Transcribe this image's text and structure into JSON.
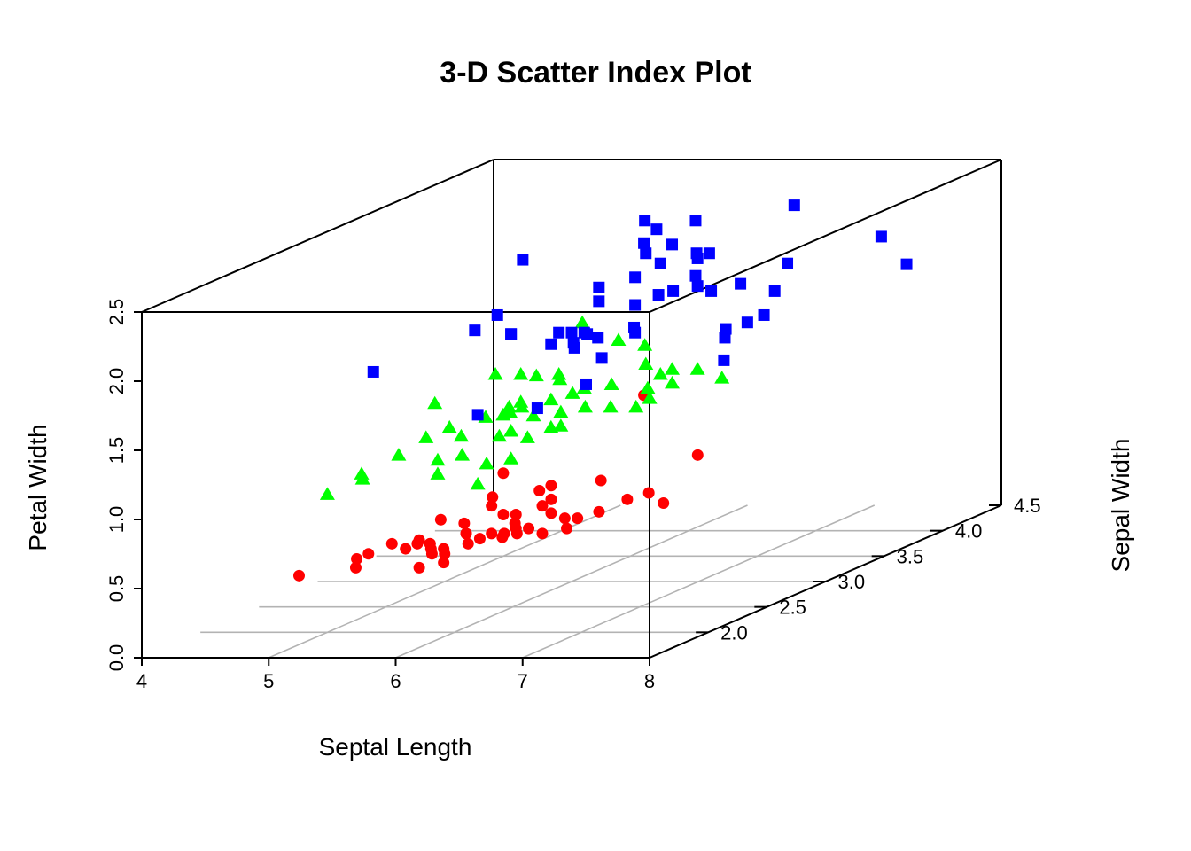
{
  "chart_data": {
    "type": "scatter",
    "projection": "3d",
    "title": "3-D Scatter Index Plot",
    "xlabel": "Septal Length",
    "ylabel": "Sepal Width",
    "zlabel": "Petal Width",
    "xlim": [
      4,
      8
    ],
    "ylim": [
      1.5,
      4.5
    ],
    "zlim": [
      0,
      2.5
    ],
    "x_ticks": [
      "4",
      "5",
      "6",
      "7",
      "8"
    ],
    "y_ticks": [
      "2.0",
      "2.5",
      "3.0",
      "3.5",
      "4.0",
      "4.5"
    ],
    "z_ticks": [
      "0.0",
      "0.5",
      "1.0",
      "1.5",
      "2.0",
      "2.5"
    ],
    "grid": true,
    "legend": "none",
    "series": [
      {
        "marker": "circle",
        "color": "#ff0000",
        "points": [
          [
            4.6,
            3.4,
            0.3
          ],
          [
            4.3,
            3.0,
            0.1
          ],
          [
            4.4,
            2.9,
            0.2
          ],
          [
            4.4,
            3.0,
            0.2
          ],
          [
            4.4,
            3.2,
            0.2
          ],
          [
            4.5,
            2.3,
            0.3
          ],
          [
            4.6,
            3.1,
            0.2
          ],
          [
            4.6,
            3.2,
            0.2
          ],
          [
            4.6,
            3.6,
            0.2
          ],
          [
            4.7,
            3.2,
            0.2
          ],
          [
            4.7,
            3.2,
            0.2
          ],
          [
            4.8,
            3.0,
            0.1
          ],
          [
            4.8,
            3.0,
            0.3
          ],
          [
            4.8,
            3.1,
            0.2
          ],
          [
            4.8,
            3.4,
            0.2
          ],
          [
            4.8,
            3.4,
            0.2
          ],
          [
            4.9,
            3.0,
            0.2
          ],
          [
            4.9,
            3.1,
            0.1
          ],
          [
            4.9,
            3.1,
            0.2
          ],
          [
            4.9,
            3.6,
            0.1
          ],
          [
            5.0,
            3.0,
            0.2
          ],
          [
            5.0,
            3.2,
            0.2
          ],
          [
            5.0,
            3.3,
            0.2
          ],
          [
            5.0,
            3.4,
            0.2
          ],
          [
            5.0,
            3.4,
            0.4
          ],
          [
            5.0,
            3.5,
            0.3
          ],
          [
            5.0,
            3.5,
            0.6
          ],
          [
            5.0,
            3.6,
            0.2
          ],
          [
            5.1,
            3.3,
            0.5
          ],
          [
            5.1,
            3.4,
            0.2
          ],
          [
            5.1,
            3.5,
            0.2
          ],
          [
            5.1,
            3.5,
            0.3
          ],
          [
            5.1,
            3.7,
            0.4
          ],
          [
            5.1,
            3.8,
            0.2
          ],
          [
            5.1,
            3.8,
            0.3
          ],
          [
            5.1,
            3.8,
            0.4
          ],
          [
            5.2,
            3.4,
            0.2
          ],
          [
            5.2,
            3.5,
            0.2
          ],
          [
            5.2,
            4.1,
            0.1
          ],
          [
            5.3,
            3.7,
            0.2
          ],
          [
            5.4,
            3.4,
            0.2
          ],
          [
            5.4,
            3.4,
            0.4
          ],
          [
            5.4,
            3.7,
            0.2
          ],
          [
            5.4,
            3.9,
            0.4
          ],
          [
            5.5,
            3.5,
            0.2
          ],
          [
            5.5,
            4.2,
            0.2
          ],
          [
            5.7,
            3.8,
            0.3
          ],
          [
            5.7,
            4.4,
            0.4
          ],
          [
            5.8,
            4.0,
            0.2
          ],
          [
            6.2,
            3.4,
            1.2
          ]
        ]
      },
      {
        "marker": "triangle",
        "color": "#00ff00",
        "points": [
          [
            5.0,
            2.0,
            1.0
          ],
          [
            5.0,
            2.3,
            1.0
          ],
          [
            4.9,
            2.4,
            1.0
          ],
          [
            5.1,
            2.5,
            1.1
          ],
          [
            5.2,
            2.7,
            1.4
          ],
          [
            5.4,
            3.0,
            1.5
          ],
          [
            5.5,
            2.3,
            1.3
          ],
          [
            5.5,
            2.4,
            1.0
          ],
          [
            5.5,
            2.4,
            1.1
          ],
          [
            5.5,
            2.5,
            1.3
          ],
          [
            5.5,
            2.6,
            1.2
          ],
          [
            5.6,
            2.5,
            1.1
          ],
          [
            5.6,
            2.7,
            1.3
          ],
          [
            5.6,
            2.9,
            1.3
          ],
          [
            5.6,
            3.0,
            1.3
          ],
          [
            5.6,
            3.0,
            1.5
          ],
          [
            5.7,
            2.6,
            1.0
          ],
          [
            5.7,
            2.8,
            1.3
          ],
          [
            5.7,
            2.9,
            1.3
          ],
          [
            5.7,
            3.0,
            1.2
          ],
          [
            5.8,
            2.6,
            1.2
          ],
          [
            5.8,
            2.7,
            1.0
          ],
          [
            5.8,
            2.7,
            1.2
          ],
          [
            5.9,
            3.0,
            1.5
          ],
          [
            5.9,
            3.2,
            1.8
          ],
          [
            6.0,
            2.2,
            1.0
          ],
          [
            6.0,
            2.7,
            1.6
          ],
          [
            6.0,
            2.9,
            1.5
          ],
          [
            6.0,
            3.4,
            1.6
          ],
          [
            6.1,
            2.8,
            1.2
          ],
          [
            6.1,
            2.8,
            1.3
          ],
          [
            6.1,
            2.9,
            1.4
          ],
          [
            6.1,
            3.0,
            1.4
          ],
          [
            6.2,
            2.2,
            1.5
          ],
          [
            6.2,
            2.9,
            1.3
          ],
          [
            6.3,
            2.3,
            1.3
          ],
          [
            6.3,
            2.5,
            1.5
          ],
          [
            6.3,
            3.3,
            1.6
          ],
          [
            6.4,
            2.9,
            1.3
          ],
          [
            6.4,
            3.2,
            1.5
          ],
          [
            6.5,
            2.8,
            1.5
          ],
          [
            6.6,
            2.9,
            1.3
          ],
          [
            6.6,
            3.0,
            1.4
          ],
          [
            6.7,
            3.0,
            1.5
          ],
          [
            6.7,
            3.1,
            1.4
          ],
          [
            6.7,
            3.1,
            1.5
          ],
          [
            6.8,
            2.8,
            1.4
          ],
          [
            6.9,
            3.1,
            1.5
          ],
          [
            7.0,
            3.2,
            1.4
          ],
          [
            6.3,
            2.5,
            1.3
          ]
        ]
      },
      {
        "marker": "square",
        "color": "#0000ff",
        "points": [
          [
            4.9,
            2.5,
            1.7
          ],
          [
            5.6,
            2.8,
            2.0
          ],
          [
            5.7,
            2.5,
            2.0
          ],
          [
            5.8,
            2.7,
            1.9
          ],
          [
            5.8,
            2.8,
            2.4
          ],
          [
            5.8,
            2.7,
            1.9
          ],
          [
            5.9,
            3.0,
            1.8
          ],
          [
            6.0,
            2.2,
            1.5
          ],
          [
            6.0,
            3.0,
            1.8
          ],
          [
            6.1,
            2.6,
            1.4
          ],
          [
            6.1,
            3.0,
            1.8
          ],
          [
            6.2,
            2.8,
            1.8
          ],
          [
            6.2,
            3.4,
            2.3
          ],
          [
            6.3,
            2.5,
            1.9
          ],
          [
            6.3,
            2.7,
            1.8
          ],
          [
            6.3,
            2.8,
            1.5
          ],
          [
            6.3,
            2.9,
            1.8
          ],
          [
            6.3,
            3.3,
            2.5
          ],
          [
            6.3,
            3.4,
            2.4
          ],
          [
            6.4,
            2.7,
            1.9
          ],
          [
            6.4,
            2.8,
            2.1
          ],
          [
            6.4,
            2.8,
            2.2
          ],
          [
            6.4,
            3.1,
            1.8
          ],
          [
            6.4,
            3.2,
            2.3
          ],
          [
            6.5,
            3.0,
            1.8
          ],
          [
            6.5,
            3.0,
            2.0
          ],
          [
            6.5,
            3.0,
            2.2
          ],
          [
            6.5,
            3.2,
            2.0
          ],
          [
            6.7,
            2.5,
            1.8
          ],
          [
            6.7,
            3.0,
            2.3
          ],
          [
            6.7,
            3.1,
            2.4
          ],
          [
            6.7,
            3.3,
            2.1
          ],
          [
            6.7,
            3.3,
            2.5
          ],
          [
            6.8,
            3.0,
            2.1
          ],
          [
            6.8,
            3.2,
            2.3
          ],
          [
            6.9,
            3.1,
            2.1
          ],
          [
            6.9,
            3.1,
            2.3
          ],
          [
            6.9,
            3.2,
            2.3
          ],
          [
            7.1,
            3.0,
            2.1
          ],
          [
            7.2,
            3.0,
            1.6
          ],
          [
            7.2,
            3.2,
            1.8
          ],
          [
            7.2,
            3.6,
            2.5
          ],
          [
            7.3,
            2.9,
            1.8
          ],
          [
            7.4,
            2.8,
            1.9
          ],
          [
            7.6,
            3.0,
            2.1
          ],
          [
            7.7,
            2.6,
            2.3
          ],
          [
            7.7,
            2.8,
            2.0
          ],
          [
            7.7,
            3.0,
            2.3
          ],
          [
            7.7,
            3.8,
            2.2
          ],
          [
            7.9,
            3.8,
            2.0
          ]
        ]
      }
    ]
  }
}
